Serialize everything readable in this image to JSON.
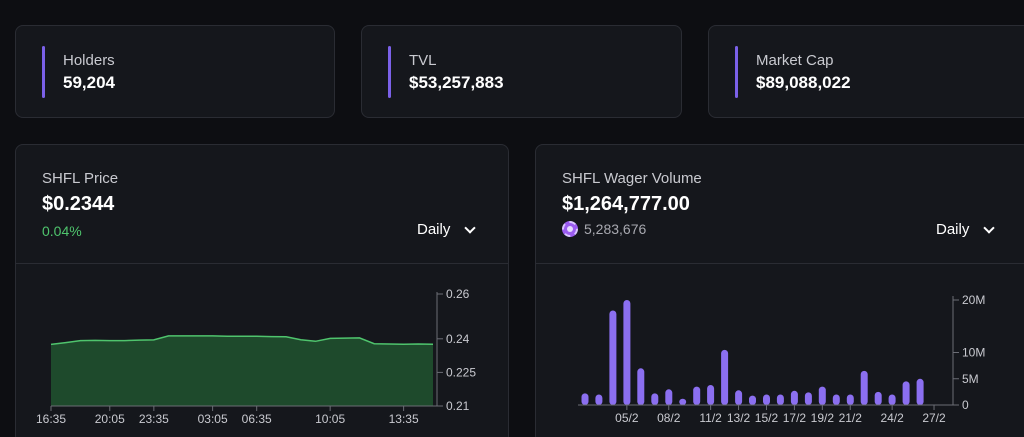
{
  "stats": [
    {
      "label": "Holders",
      "value": "59,204"
    },
    {
      "label": "TVL",
      "value": "$53,257,883"
    },
    {
      "label": "Market Cap",
      "value": "$89,088,022"
    }
  ],
  "price_card": {
    "title": "SHFL Price",
    "value": "$0.2344",
    "change": "0.04%",
    "period": "Daily"
  },
  "volume_card": {
    "title": "SHFL Wager Volume",
    "value": "$1,264,777.00",
    "sub_value": "5,283,676",
    "period": "Daily"
  },
  "colors": {
    "accent": "#7b61e8",
    "positive": "#4fc46d",
    "bar": "#8b6ff0",
    "price_line": "#4fc46d",
    "price_fill": "#1e4a2c"
  },
  "chart_data": [
    {
      "type": "area",
      "x": [
        "16:35",
        "17:35",
        "18:35",
        "19:35",
        "20:05",
        "21:35",
        "22:35",
        "23:35",
        "00:35",
        "01:35",
        "02:35",
        "03:05",
        "04:35",
        "05:35",
        "06:35",
        "07:35",
        "08:35",
        "09:35",
        "09:50",
        "10:05",
        "10:20",
        "11:05",
        "11:35",
        "12:35",
        "13:35",
        "14:35",
        "15:35"
      ],
      "values": [
        0.2375,
        0.2383,
        0.2392,
        0.2393,
        0.2392,
        0.2392,
        0.2394,
        0.2395,
        0.2413,
        0.2413,
        0.2413,
        0.2413,
        0.2411,
        0.2411,
        0.2411,
        0.241,
        0.2409,
        0.2396,
        0.2389,
        0.2402,
        0.2403,
        0.2404,
        0.2378,
        0.2377,
        0.2376,
        0.2377,
        0.2376
      ],
      "x_tick_labels": [
        "16:35",
        "20:05",
        "23:35",
        "03:05",
        "06:35",
        "10:05",
        "13:35"
      ],
      "y_tick_labels": [
        "0.26",
        "0.24",
        "0.225",
        "0.21"
      ],
      "ylim": [
        0.21,
        0.26
      ]
    },
    {
      "type": "bar",
      "categories": [
        "02/2",
        "03/2",
        "04/2",
        "05/2",
        "06/2",
        "07/2",
        "08/2",
        "09/2",
        "10/2",
        "11/2",
        "12/2",
        "13/2",
        "14/2",
        "15/2",
        "16/2",
        "17/2",
        "18/2",
        "19/2",
        "20/2",
        "21/2",
        "22/2",
        "23/2",
        "24/2",
        "25/2",
        "26/2",
        "27/2"
      ],
      "values": [
        2.2,
        2.0,
        18.0,
        20.0,
        7.0,
        2.2,
        3.0,
        1.2,
        3.5,
        3.8,
        10.5,
        2.8,
        1.8,
        2.0,
        2.0,
        2.7,
        2.4,
        3.5,
        2.0,
        2.0,
        6.5,
        2.5,
        2.0,
        4.5,
        5.0,
        0
      ],
      "x_tick_labels": [
        "05/2",
        "08/2",
        "11/2",
        "13/2",
        "15/2",
        "17/2",
        "19/2",
        "21/2",
        "24/2",
        "27/2"
      ],
      "y_tick_labels": [
        "20M",
        "10M",
        "5M",
        "0"
      ],
      "ylim": [
        0,
        20
      ]
    }
  ]
}
